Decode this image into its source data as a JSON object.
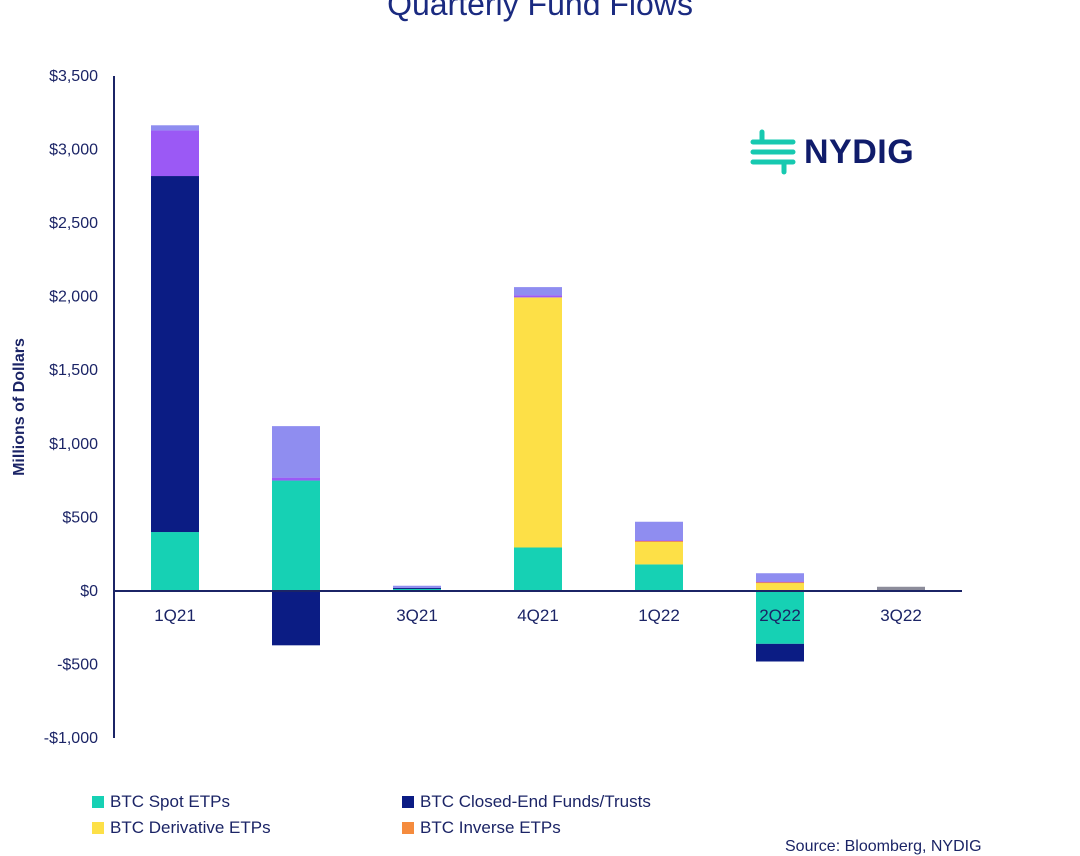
{
  "chart_data": {
    "type": "bar",
    "stacked": true,
    "title": "Quarterly Fund Flows",
    "ylabel": "Millions of Dollars",
    "xlabel": "",
    "ylim": [
      -1000,
      3500
    ],
    "yticks": [
      3500,
      3000,
      2500,
      2000,
      1500,
      1000,
      500,
      0,
      -500,
      -1000
    ],
    "ytick_labels": [
      "$3,500",
      "$3,000",
      "$2,500",
      "$2,000",
      "$1,500",
      "$1,000",
      "$500",
      "$0",
      "-$500",
      "-$1,000"
    ],
    "categories": [
      "1Q21",
      "",
      "3Q21",
      "4Q21",
      "1Q22",
      "2Q22",
      "3Q22"
    ],
    "grid": false,
    "legend_position": "bottom",
    "series": [
      {
        "name": "BTC Spot ETPs",
        "color": "#16d1b4",
        "values": [
          400,
          750,
          15,
          295,
          180,
          -360,
          0
        ]
      },
      {
        "name": "BTC Closed-End Funds/Trusts",
        "color": "#0b1c84",
        "values": [
          2420,
          -370,
          5,
          0,
          0,
          -120,
          0
        ]
      },
      {
        "name": "BTC Derivative ETPs",
        "color": "#fde047",
        "values": [
          0,
          0,
          0,
          1700,
          155,
          55,
          0
        ]
      },
      {
        "name": "BTC Inverse ETPs",
        "color": "#f58b3d",
        "values": [
          0,
          0,
          0,
          0,
          5,
          5,
          0
        ]
      },
      {
        "name": "",
        "color": "#9b59f5",
        "values": [
          310,
          20,
          0,
          15,
          5,
          5,
          0
        ]
      },
      {
        "name": "",
        "color": "#8f8df0",
        "values": [
          35,
          350,
          15,
          55,
          125,
          55,
          0
        ]
      },
      {
        "name": "",
        "color": "#8c8c9a",
        "values": [
          0,
          0,
          0,
          0,
          0,
          0,
          28
        ]
      }
    ]
  },
  "logo": {
    "text": "NYDIG",
    "color": "#101c6b",
    "mark_color": "#16c9b0"
  },
  "source_note": "Source: Bloomberg, NYDIG"
}
